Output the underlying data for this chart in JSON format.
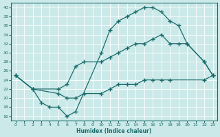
{
  "xlabel": "Humidex (Indice chaleur)",
  "bg_color": "#cce9e9",
  "line_color": "#1a6b6b",
  "grid_color": "#ffffff",
  "xlim": [
    -0.5,
    23.5
  ],
  "ylim": [
    15,
    41
  ],
  "xticks": [
    0,
    1,
    2,
    3,
    4,
    5,
    6,
    7,
    8,
    9,
    10,
    11,
    12,
    13,
    14,
    15,
    16,
    17,
    18,
    19,
    20,
    21,
    22,
    23
  ],
  "yticks": [
    16,
    18,
    20,
    22,
    24,
    26,
    28,
    30,
    32,
    34,
    36,
    38,
    40
  ],
  "line1_x": [
    0,
    2,
    5,
    6,
    7,
    8,
    10,
    11,
    12,
    13,
    14,
    15,
    16,
    17,
    18,
    22,
    23
  ],
  "line1_y": [
    25,
    22,
    21,
    20,
    20,
    21,
    21,
    22,
    23,
    23,
    23,
    24,
    24,
    24,
    24,
    24,
    25
  ],
  "line2_x": [
    0,
    2,
    5,
    6,
    7,
    8,
    10,
    11,
    12,
    13,
    14,
    15,
    16,
    17,
    18,
    19,
    20,
    22,
    23
  ],
  "line2_y": [
    25,
    22,
    22,
    23,
    27,
    28,
    28,
    29,
    30,
    31,
    32,
    32,
    33,
    34,
    32,
    32,
    32,
    28,
    25
  ],
  "line3_x": [
    0,
    2,
    3,
    4,
    5,
    6,
    7,
    10,
    11,
    12,
    13,
    14,
    15,
    16,
    17,
    18,
    19,
    20,
    22,
    23
  ],
  "line3_y": [
    25,
    22,
    19,
    18,
    18,
    16,
    17,
    30,
    35,
    37,
    38,
    39,
    40,
    40,
    39,
    37,
    36,
    32,
    28,
    25
  ]
}
